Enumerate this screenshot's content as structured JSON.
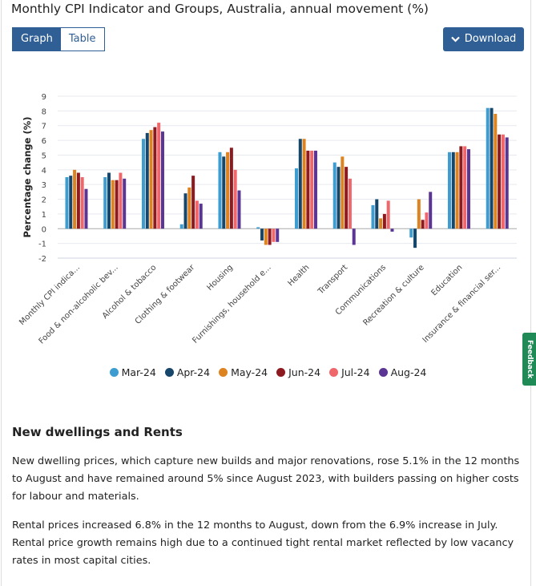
{
  "title": "Monthly CPI Indicator and Groups, Australia, annual movement (%)",
  "toggle": {
    "graph": "Graph",
    "table": "Table",
    "active": "Graph"
  },
  "download": "Download",
  "feedback": "Feedback",
  "chart_data": {
    "type": "bar",
    "title": "Monthly CPI Indicator and Groups, Australia, annual movement (%)",
    "ylabel": "Percentage change (%)",
    "xlabel": "",
    "ylim": [
      -2,
      9
    ],
    "yticks": [
      -2,
      -1,
      0,
      1,
      2,
      3,
      4,
      5,
      6,
      7,
      8,
      9
    ],
    "grid": true,
    "legend": "bottom",
    "categories": [
      "Monthly CPI indica...",
      "Food & non-alcoholic bev...",
      "Alcohol & tobacco",
      "Clothing & footwear",
      "Housing",
      "Furnishings, household e...",
      "Health",
      "Transport",
      "Communications",
      "Recreation & culture",
      "Education",
      "Insurance & financial ser..."
    ],
    "series": [
      {
        "name": "Mar-24",
        "color": "#3d9dd1",
        "values": [
          3.5,
          3.5,
          6.1,
          0.3,
          5.2,
          0.1,
          4.1,
          4.5,
          1.6,
          -0.6,
          5.2,
          8.2
        ]
      },
      {
        "name": "Apr-24",
        "color": "#17466b",
        "values": [
          3.6,
          3.8,
          6.5,
          2.4,
          4.9,
          -0.8,
          6.1,
          4.2,
          2.0,
          -1.3,
          5.2,
          8.2
        ]
      },
      {
        "name": "May-24",
        "color": "#dd8320",
        "values": [
          4.0,
          3.3,
          6.7,
          2.8,
          5.2,
          -1.1,
          6.1,
          4.9,
          0.7,
          2.0,
          5.2,
          7.8
        ]
      },
      {
        "name": "Jun-24",
        "color": "#8c1a1f",
        "values": [
          3.8,
          3.3,
          6.9,
          3.6,
          5.5,
          -1.1,
          5.3,
          4.2,
          1.0,
          0.6,
          5.6,
          6.4
        ]
      },
      {
        "name": "Jul-24",
        "color": "#f0676b",
        "values": [
          3.5,
          3.8,
          7.2,
          1.9,
          4.0,
          -0.9,
          5.3,
          3.4,
          1.9,
          1.1,
          5.6,
          6.4
        ]
      },
      {
        "name": "Aug-24",
        "color": "#5b3593",
        "values": [
          2.7,
          3.4,
          6.6,
          1.7,
          2.6,
          -0.9,
          5.3,
          -1.1,
          -0.2,
          2.5,
          5.4,
          6.2
        ]
      }
    ]
  },
  "article": {
    "heading": "New dwellings and Rents",
    "paragraphs": [
      "New dwelling prices, which capture new builds and major renovations, rose 5.1% in the 12 months to August and have remained around 5% since August 2023, with builders passing on higher costs for labour and materials.",
      "Rental prices increased 6.8% in the 12 months to August, down from the 6.9% increase in July. Rental price growth remains high due to a continued tight rental market reflected by low vacancy rates in most capital cities."
    ]
  }
}
